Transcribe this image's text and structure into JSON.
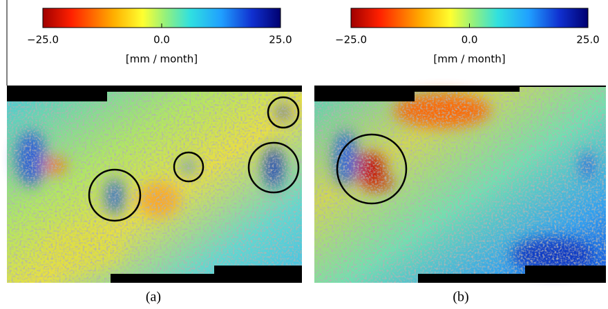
{
  "panels": [
    {
      "colorbar": {
        "ticks": [
          {
            "value": -25,
            "label": "−25.0"
          },
          {
            "value": 0,
            "label": "0.0"
          },
          {
            "value": 25,
            "label": "25.0"
          }
        ],
        "unit": "[mm / month]"
      },
      "caption": "(a)"
    },
    {
      "colorbar": {
        "ticks": [
          {
            "value": -25,
            "label": "−25.0"
          },
          {
            "value": 0,
            "label": "0.0"
          },
          {
            "value": 25,
            "label": "25.0"
          }
        ],
        "unit": "[mm / month]"
      },
      "caption": "(b)"
    }
  ]
}
